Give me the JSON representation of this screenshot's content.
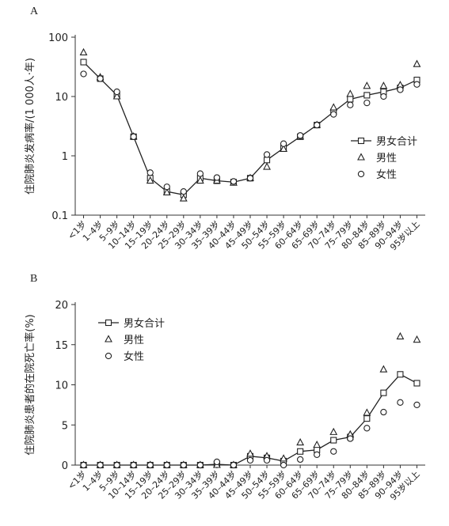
{
  "chart_data": [
    {
      "type": "line",
      "panel_label": "A",
      "y_label": "住院肺炎发病率/(1 000人·年)",
      "categories": [
        "<1岁",
        "1–4岁",
        "5–9岁",
        "10–14岁",
        "15–19岁",
        "20–24岁",
        "25–29岁",
        "30–34岁",
        "35–39岁",
        "40–44岁",
        "45–49岁",
        "50–54岁",
        "55–59岁",
        "60–64岁",
        "65–69岁",
        "70–74岁",
        "75–79岁",
        "80–84岁",
        "85–89岁",
        "90–94岁",
        "95岁以上"
      ],
      "series": [
        {
          "name": "男女合计",
          "color": "#222222",
          "marker": "square",
          "line": true,
          "values": [
            38,
            20,
            10.5,
            2.1,
            0.42,
            0.25,
            0.22,
            0.42,
            0.38,
            0.36,
            0.42,
            0.85,
            1.35,
            2.1,
            3.3,
            5.5,
            9,
            10.5,
            12,
            14,
            19
          ]
        },
        {
          "name": "男性",
          "color": "#222222",
          "marker": "triangle",
          "line": false,
          "values": [
            55,
            21,
            10,
            2.1,
            0.38,
            0.24,
            0.19,
            0.38,
            0.38,
            0.35,
            0.42,
            0.65,
            1.3,
            2.1,
            3.3,
            6.5,
            11,
            15,
            15,
            15.5,
            35
          ]
        },
        {
          "name": "女性",
          "color": "#222222",
          "marker": "circle",
          "line": false,
          "values": [
            24,
            20,
            12,
            2.1,
            0.52,
            0.3,
            0.25,
            0.5,
            0.43,
            0.37,
            0.42,
            1.05,
            1.6,
            2.2,
            3.3,
            5,
            7.2,
            7.8,
            10,
            13,
            16
          ]
        }
      ],
      "log_scale": true,
      "ylim": [
        0.1,
        100
      ],
      "yticks": [
        0.1,
        1,
        10,
        100
      ],
      "legend": "right"
    },
    {
      "type": "line",
      "panel_label": "B",
      "y_label": "住院肺炎患者的在院死亡率(%)",
      "categories": [
        "<1岁",
        "1–4岁",
        "5–9岁",
        "10–14岁",
        "15–19岁",
        "20–24岁",
        "25–29岁",
        "30–34岁",
        "35–39岁",
        "40–44岁",
        "45–49岁",
        "50–54岁",
        "55–59岁",
        "60–64岁",
        "65–69岁",
        "70–74岁",
        "75–79岁",
        "80–84岁",
        "85–89岁",
        "90–94岁",
        "95岁以上"
      ],
      "series": [
        {
          "name": "男女合计",
          "color": "#222222",
          "marker": "square",
          "line": true,
          "values": [
            0,
            0,
            0,
            0,
            0,
            0,
            0,
            0,
            0.1,
            0,
            1.1,
            0.9,
            0.5,
            1.7,
            1.9,
            3.1,
            3.5,
            5.8,
            9,
            11.3,
            10.2
          ]
        },
        {
          "name": "男性",
          "color": "#222222",
          "marker": "triangle",
          "line": false,
          "values": [
            0,
            0,
            0,
            0,
            0,
            0,
            0,
            0,
            0,
            0,
            1.4,
            1.1,
            0.8,
            2.8,
            2.5,
            4.1,
            3.8,
            6.5,
            11.9,
            16,
            15.6
          ]
        },
        {
          "name": "女性",
          "color": "#222222",
          "marker": "circle",
          "line": false,
          "values": [
            0,
            0,
            0,
            0,
            0,
            0,
            0,
            0,
            0.4,
            0,
            0.6,
            0.6,
            0,
            0.7,
            1.3,
            1.7,
            3.3,
            4.6,
            6.6,
            7.8,
            7.5
          ]
        }
      ],
      "log_scale": false,
      "ylim": [
        0,
        20
      ],
      "yticks": [
        0,
        5,
        10,
        15,
        20
      ],
      "legend": "upper left"
    }
  ]
}
